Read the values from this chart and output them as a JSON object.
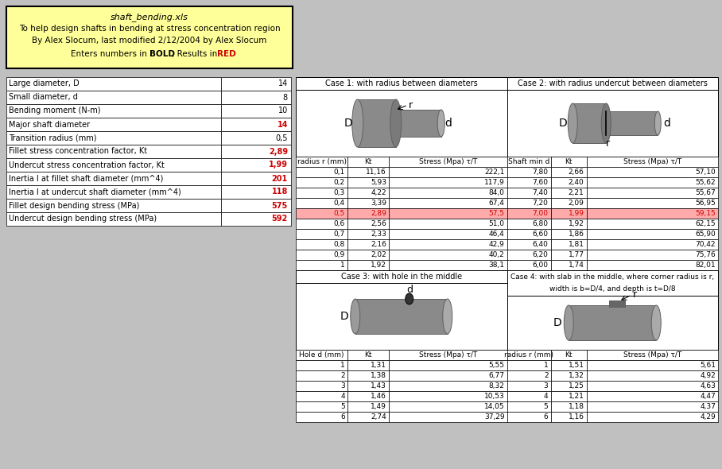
{
  "title_text": "shaft_bending.xls",
  "subtitle_lines": [
    "To help design shafts in bending at stress concentration region",
    "By Alex Slocum, last modified 2/12/2004 by Alex Slocum",
    "Enters numbers in BOLD, Results in RED"
  ],
  "input_labels": [
    "Large diameter, D",
    "Small diameter, d",
    "Bending moment (N-m)",
    "Major shaft diameter",
    "Transition radius (mm)",
    "Fillet stress concentration factor, Kt",
    "Undercut stress concentration factor, Kt",
    "Inertia I at fillet shaft diameter (mm^4)",
    "Inertia I at undercut shaft diameter (mm^4)",
    "Fillet design bending stress (MPa)",
    "Undercut design bending stress (MPa)"
  ],
  "input_values": [
    "14",
    "8",
    "10",
    "14",
    "0,5",
    "2,89",
    "1,99",
    "201",
    "118",
    "575",
    "592"
  ],
  "input_red": [
    false,
    false,
    false,
    true,
    false,
    true,
    true,
    true,
    true,
    true,
    true
  ],
  "case1_title": "Case 1: with radius between diameters",
  "case2_title": "Case 2: with radius undercut between diameters",
  "case3_title": "Case 3: with hole in the middle",
  "case4_line1": "Case 4: with slab in the middle, where corner radius is r,",
  "case4_line2": "width is b=D/4, and depth is t=D/8",
  "case1_headers": [
    "radius r (mm)",
    "Kt",
    "Stress (Mpa) τ/T"
  ],
  "case1_data": [
    [
      "0,1",
      "11,16",
      "222,1"
    ],
    [
      "0,2",
      "5,93",
      "117,9"
    ],
    [
      "0,3",
      "4,22",
      "84,0"
    ],
    [
      "0,4",
      "3,39",
      "67,4"
    ],
    [
      "0,5",
      "2,89",
      "57,5"
    ],
    [
      "0,6",
      "2,56",
      "51,0"
    ],
    [
      "0,7",
      "2,33",
      "46,4"
    ],
    [
      "0,8",
      "2,16",
      "42,9"
    ],
    [
      "0,9",
      "2,02",
      "40,2"
    ],
    [
      "1",
      "1,92",
      "38,1"
    ]
  ],
  "case1_highlight_row": 4,
  "case2_headers": [
    "Shaft min d",
    "Kt",
    "Stress (Mpa) τ/T"
  ],
  "case2_data": [
    [
      "7,80",
      "2,66",
      "57,10"
    ],
    [
      "7,60",
      "2,40",
      "55,62"
    ],
    [
      "7,40",
      "2,21",
      "55,67"
    ],
    [
      "7,20",
      "2,09",
      "56,95"
    ],
    [
      "7,00",
      "1,99",
      "59,15"
    ],
    [
      "6,80",
      "1,92",
      "62,15"
    ],
    [
      "6,60",
      "1,86",
      "65,90"
    ],
    [
      "6,40",
      "1,81",
      "70,42"
    ],
    [
      "6,20",
      "1,77",
      "75,76"
    ],
    [
      "6,00",
      "1,74",
      "82,01"
    ]
  ],
  "case2_highlight_row": 4,
  "case3_headers": [
    "Hole d (mm)",
    "Kt",
    "Stress (Mpa) τ/T"
  ],
  "case3_data": [
    [
      "1",
      "1,31",
      "5,55"
    ],
    [
      "2",
      "1,38",
      "6,77"
    ],
    [
      "3",
      "1,43",
      "8,32"
    ],
    [
      "4",
      "1,46",
      "10,53"
    ],
    [
      "5",
      "1,49",
      "14,05"
    ],
    [
      "6",
      "2,74",
      "37,29"
    ]
  ],
  "case4_headers": [
    "radius r (mm)",
    "Kt",
    "Stress (Mpa) τ/T"
  ],
  "case4_data": [
    [
      "1",
      "1,51",
      "5,61"
    ],
    [
      "2",
      "1,32",
      "4,92"
    ],
    [
      "3",
      "1,25",
      "4,63"
    ],
    [
      "4",
      "1,21",
      "4,47"
    ],
    [
      "5",
      "1,18",
      "4,37"
    ],
    [
      "6",
      "1,16",
      "4,29"
    ]
  ],
  "bg_color": "#c0c0c0",
  "title_bg": "#ffff99",
  "highlight_color": "#ffaaaa",
  "red_color": "#cc0000",
  "shaft_gray": "#8a8a8a",
  "shaft_dark": "#606060",
  "shaft_light": "#aaaaaa"
}
